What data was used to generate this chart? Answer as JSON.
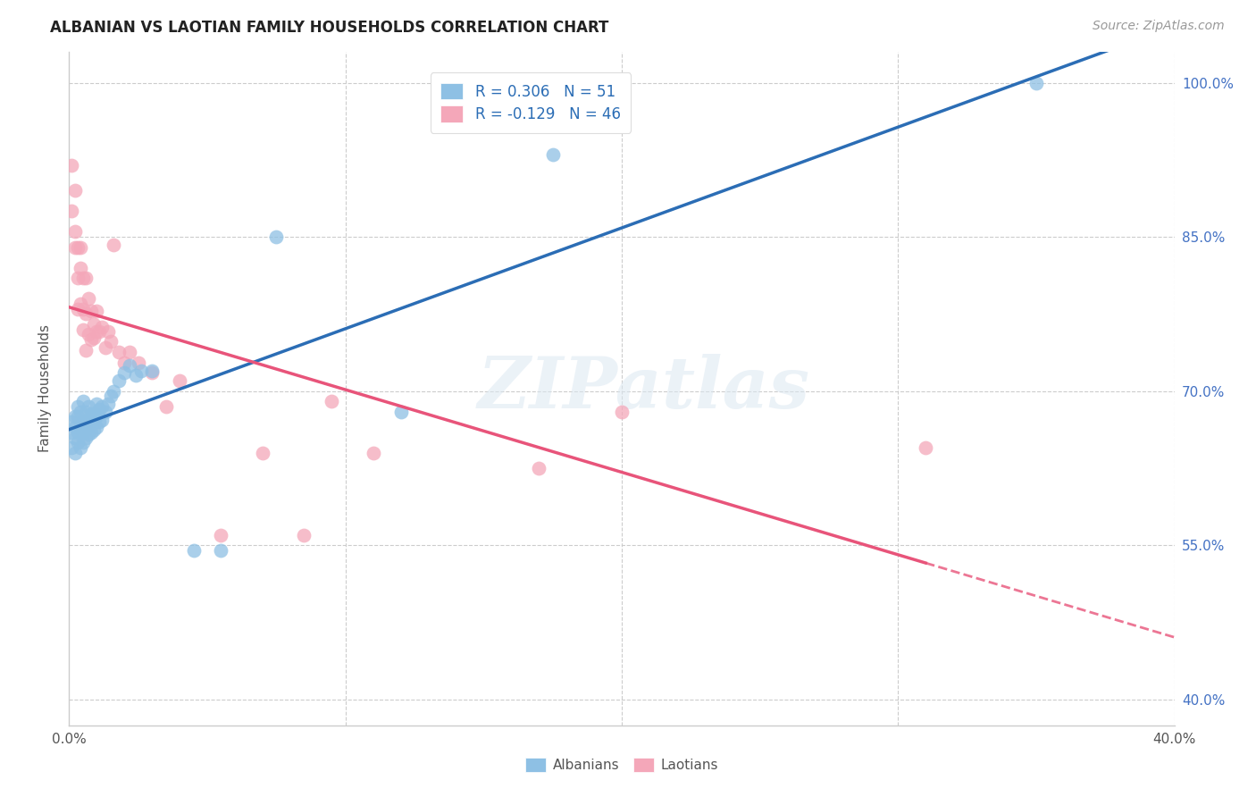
{
  "title": "ALBANIAN VS LAOTIAN FAMILY HOUSEHOLDS CORRELATION CHART",
  "source": "Source: ZipAtlas.com",
  "ylabel": "Family Households",
  "ytick_labels": [
    "40.0%",
    "55.0%",
    "70.0%",
    "85.0%",
    "100.0%"
  ],
  "ytick_values": [
    0.4,
    0.55,
    0.7,
    0.85,
    1.0
  ],
  "xlim": [
    0.0,
    0.4
  ],
  "ylim": [
    0.375,
    1.03
  ],
  "legend_entries": [
    {
      "label": "R = 0.306   N = 51",
      "color": "#8ec0e4"
    },
    {
      "label": "R = -0.129   N = 46",
      "color": "#f4a7b9"
    }
  ],
  "legend_labels": [
    "Albanians",
    "Laotians"
  ],
  "albanian_color": "#8ec0e4",
  "laotian_color": "#f4a7b9",
  "albanian_line_color": "#2b6db5",
  "laotian_line_color": "#e8547a",
  "albanians_x": [
    0.001,
    0.001,
    0.001,
    0.002,
    0.002,
    0.002,
    0.002,
    0.003,
    0.003,
    0.003,
    0.003,
    0.004,
    0.004,
    0.004,
    0.005,
    0.005,
    0.005,
    0.005,
    0.006,
    0.006,
    0.006,
    0.007,
    0.007,
    0.007,
    0.008,
    0.008,
    0.009,
    0.009,
    0.01,
    0.01,
    0.01,
    0.011,
    0.011,
    0.012,
    0.012,
    0.013,
    0.014,
    0.015,
    0.016,
    0.018,
    0.02,
    0.022,
    0.024,
    0.026,
    0.03,
    0.045,
    0.055,
    0.075,
    0.12,
    0.175,
    0.35
  ],
  "albanians_y": [
    0.645,
    0.66,
    0.67,
    0.64,
    0.655,
    0.665,
    0.675,
    0.65,
    0.66,
    0.675,
    0.685,
    0.645,
    0.665,
    0.68,
    0.65,
    0.66,
    0.67,
    0.69,
    0.655,
    0.668,
    0.68,
    0.658,
    0.672,
    0.685,
    0.66,
    0.678,
    0.662,
    0.678,
    0.665,
    0.675,
    0.688,
    0.67,
    0.682,
    0.672,
    0.685,
    0.68,
    0.688,
    0.695,
    0.7,
    0.71,
    0.718,
    0.725,
    0.715,
    0.72,
    0.72,
    0.545,
    0.545,
    0.85,
    0.68,
    0.93,
    1.0
  ],
  "laotians_x": [
    0.001,
    0.001,
    0.002,
    0.002,
    0.002,
    0.003,
    0.003,
    0.003,
    0.004,
    0.004,
    0.004,
    0.005,
    0.005,
    0.005,
    0.006,
    0.006,
    0.006,
    0.007,
    0.007,
    0.008,
    0.008,
    0.009,
    0.009,
    0.01,
    0.01,
    0.011,
    0.012,
    0.013,
    0.014,
    0.015,
    0.016,
    0.018,
    0.02,
    0.022,
    0.025,
    0.03,
    0.035,
    0.04,
    0.055,
    0.07,
    0.085,
    0.095,
    0.11,
    0.17,
    0.2,
    0.31
  ],
  "laotians_y": [
    0.92,
    0.875,
    0.895,
    0.855,
    0.84,
    0.84,
    0.81,
    0.78,
    0.82,
    0.785,
    0.84,
    0.76,
    0.81,
    0.78,
    0.775,
    0.74,
    0.81,
    0.755,
    0.79,
    0.75,
    0.778,
    0.765,
    0.752,
    0.758,
    0.778,
    0.758,
    0.762,
    0.742,
    0.758,
    0.748,
    0.842,
    0.738,
    0.728,
    0.738,
    0.728,
    0.718,
    0.685,
    0.71,
    0.56,
    0.64,
    0.56,
    0.69,
    0.64,
    0.625,
    0.68,
    0.645
  ],
  "watermark_text": "ZIPatlas",
  "background_color": "#ffffff",
  "grid_color": "#cccccc"
}
